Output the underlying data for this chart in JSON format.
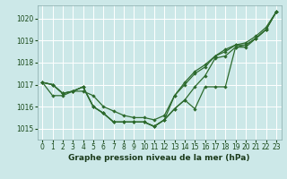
{
  "title": "Graphe pression niveau de la mer (hPa)",
  "bg_color": "#cce8e8",
  "grid_color": "#ffffff",
  "xlim": [
    -0.5,
    23.5
  ],
  "ylim": [
    1014.5,
    1020.6
  ],
  "yticks": [
    1015,
    1016,
    1017,
    1018,
    1019,
    1020
  ],
  "xticks": [
    0,
    1,
    2,
    3,
    4,
    5,
    6,
    7,
    8,
    9,
    10,
    11,
    12,
    13,
    14,
    15,
    16,
    17,
    18,
    19,
    20,
    21,
    22,
    23
  ],
  "series": [
    [
      1017.1,
      1017.0,
      1016.6,
      1016.7,
      1016.9,
      1016.0,
      1015.7,
      1015.3,
      1015.3,
      1015.3,
      1015.3,
      1015.1,
      1015.4,
      1015.9,
      1016.3,
      1015.9,
      1016.9,
      1016.9,
      1016.9,
      1018.7,
      1018.7,
      1019.1,
      1019.5,
      1020.3
    ],
    [
      1017.1,
      1017.0,
      1016.6,
      1016.7,
      1016.9,
      1016.0,
      1015.7,
      1015.3,
      1015.3,
      1015.3,
      1015.3,
      1015.1,
      1015.4,
      1015.9,
      1016.3,
      1016.9,
      1017.4,
      1018.2,
      1018.3,
      1018.7,
      1018.8,
      1019.1,
      1019.5,
      1020.3
    ],
    [
      1017.1,
      1017.0,
      1016.6,
      1016.7,
      1016.9,
      1016.0,
      1015.7,
      1015.3,
      1015.3,
      1015.3,
      1015.3,
      1015.1,
      1015.4,
      1016.5,
      1017.0,
      1017.5,
      1017.8,
      1018.3,
      1018.5,
      1018.8,
      1018.8,
      1019.1,
      1019.5,
      1020.3
    ],
    [
      1017.1,
      1016.5,
      1016.5,
      1016.7,
      1016.7,
      1016.5,
      1016.0,
      1015.8,
      1015.6,
      1015.5,
      1015.5,
      1015.4,
      1015.6,
      1016.5,
      1017.1,
      1017.6,
      1017.9,
      1018.3,
      1018.6,
      1018.8,
      1018.9,
      1019.2,
      1019.6,
      1020.3
    ]
  ],
  "line_colors": [
    "#2d6a2d",
    "#2d6a2d",
    "#2d6a2d",
    "#2d6a2d"
  ],
  "marker_size": 2.2,
  "line_width": 0.9,
  "tick_fontsize": 5.5,
  "xlabel_fontsize": 6.5,
  "tick_color": "#1a4a1a",
  "xlabel_color": "#1a3a1a"
}
